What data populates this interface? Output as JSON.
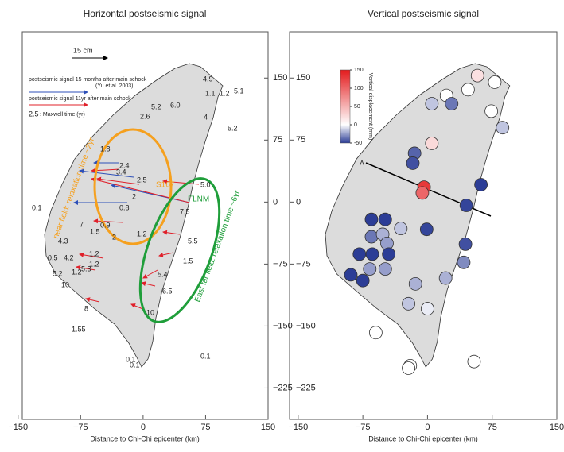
{
  "chart_data": [
    {
      "type": "vector",
      "title": "Horizontal postseismic signal",
      "xlabel": "Distance to Chi-Chi epicenter (km)",
      "xlim": [
        -145,
        150
      ],
      "ylim": [
        -263,
        206
      ],
      "xticks": [
        {
          "value": -150,
          "label": "−150"
        },
        {
          "value": -75,
          "label": "−75"
        },
        0,
        75,
        150
      ],
      "yticks": [
        150,
        75,
        0,
        {
          "value": -75,
          "label": "−75"
        },
        {
          "value": -150,
          "label": "−150"
        },
        {
          "value": -225,
          "label": "−225"
        }
      ],
      "scale_label": "15 cm",
      "legend": [
        "postseismic signal 15 months after main schock",
        "(Yu et al. 2003)",
        "postseismic signal 11yr after main schock",
        "2.5",
        ": Maxwell time (yr)"
      ],
      "near_field": "near field: relaxation time ~2yr",
      "far_field": "East far field: relaxation time ~6yr",
      "stations": [
        "S167",
        "FLNM"
      ],
      "labels": [
        "4.9",
        "1.1",
        "1.2",
        "5.1",
        "5.2",
        "6.0",
        "2.6",
        "4",
        "5.2",
        "1.8",
        "2.4",
        "3.4",
        "2.5",
        "2",
        "0.8",
        "5.0",
        "7.5",
        "0.1",
        "7",
        "0.9",
        "1.5",
        "2",
        "1.2",
        "4.3",
        "0.5",
        "4.2",
        "1.2",
        "1.2",
        "5.2",
        "1.2",
        "5.3",
        "10",
        "5.5",
        "1.5",
        "5.4",
        "6.5",
        "10",
        "8",
        "1.55",
        "0.1",
        "0.1",
        "0.1"
      ]
    },
    {
      "type": "scatter",
      "title": "Vertical postseismic signal",
      "xlabel": "Distance to Chi-Chi epicenter (km)",
      "xlim": [
        -160,
        150
      ],
      "ylim": [
        -263,
        206
      ],
      "xticks": [
        {
          "value": -150,
          "label": "−150"
        },
        {
          "value": -75,
          "label": "−75"
        },
        0,
        75,
        150
      ],
      "yticks": [
        150,
        75,
        0,
        {
          "value": -75,
          "label": "−75"
        },
        {
          "value": -150,
          "label": "−150"
        },
        {
          "value": -225,
          "label": "−225"
        }
      ],
      "profile_label": "A",
      "colorbar": {
        "label": "Vertical displacement (mm)",
        "lim": [
          -50,
          150
        ],
        "ticks": [
          150,
          100,
          50,
          0,
          {
            "value": -50,
            "label": "-50"
          }
        ]
      },
      "x": [
        58,
        78,
        47,
        22,
        5,
        28,
        74,
        87,
        5,
        -15,
        -17,
        -4,
        -6,
        62,
        45,
        -65,
        -49,
        -65,
        -52,
        -31,
        -1,
        -47,
        -79,
        -64,
        -45,
        -67,
        -49,
        -89,
        -75,
        44,
        42,
        21,
        -14,
        -22,
        0,
        -60,
        -20,
        -22,
        54
      ],
      "y": [
        153,
        145,
        136,
        129,
        119,
        119,
        110,
        90,
        71,
        59,
        47,
        18,
        11,
        21,
        -4,
        -21,
        -21,
        -42,
        -39,
        -32,
        -33,
        -50,
        -63,
        -63,
        -63,
        -81,
        -81,
        -88,
        -95,
        -51,
        -73,
        -92,
        -99,
        -123,
        -129,
        -158,
        -198,
        -201,
        -193
      ],
      "values": [
        20,
        0,
        0,
        0,
        -15,
        -35,
        0,
        -15,
        25,
        -40,
        -45,
        130,
        100,
        -50,
        -48,
        -50,
        -50,
        -35,
        -20,
        -15,
        -48,
        -25,
        -50,
        -50,
        -50,
        -25,
        -25,
        -50,
        -50,
        -45,
        -30,
        -20,
        -20,
        -15,
        -5,
        0,
        0,
        0,
        0
      ]
    }
  ]
}
